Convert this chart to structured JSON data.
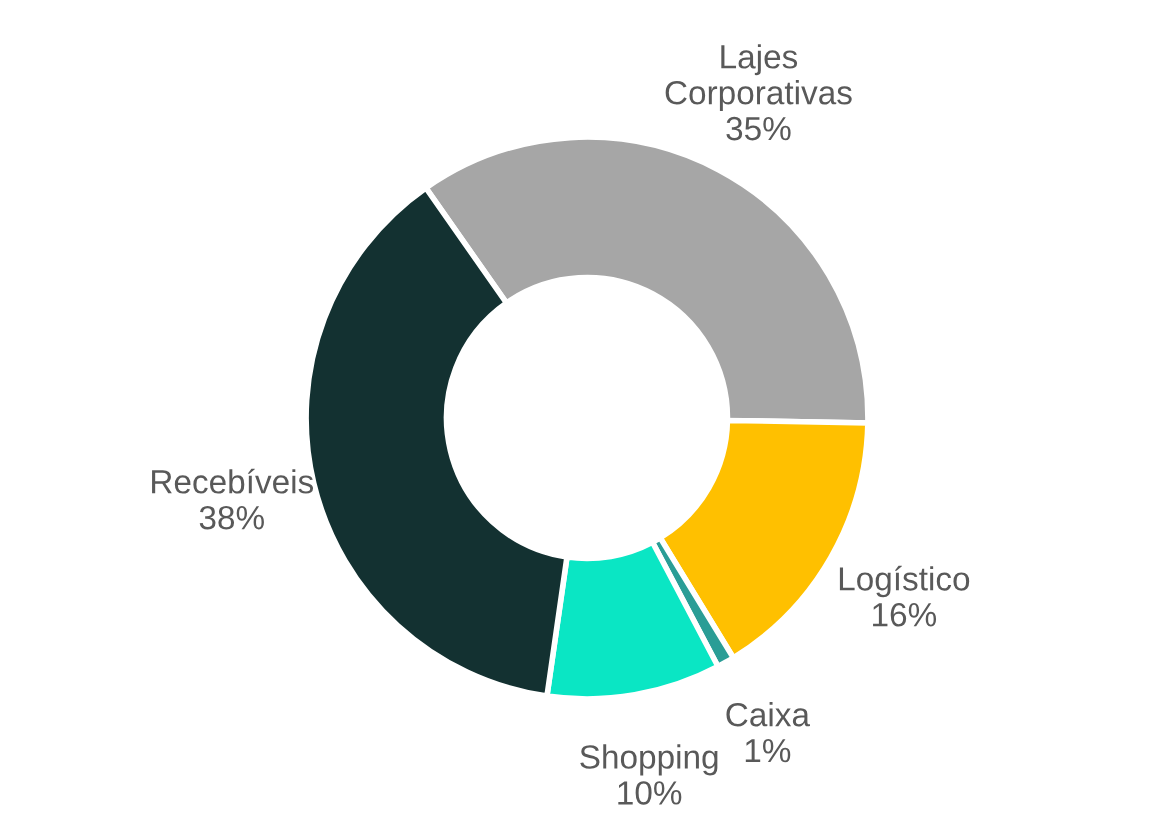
{
  "chart_data": {
    "type": "donut",
    "categories": [
      "Lajes Corporativas",
      "Logístico",
      "Caixa",
      "Shopping",
      "Recebíveis"
    ],
    "values": [
      35,
      16,
      1,
      10,
      38
    ],
    "colors": [
      "#a6a6a6",
      "#ffc000",
      "#2a9d96",
      "#0ae6c4",
      "#133131"
    ],
    "value_labels": [
      "35%",
      "16%",
      "1%",
      "10%",
      "38%"
    ],
    "legend": false
  }
}
